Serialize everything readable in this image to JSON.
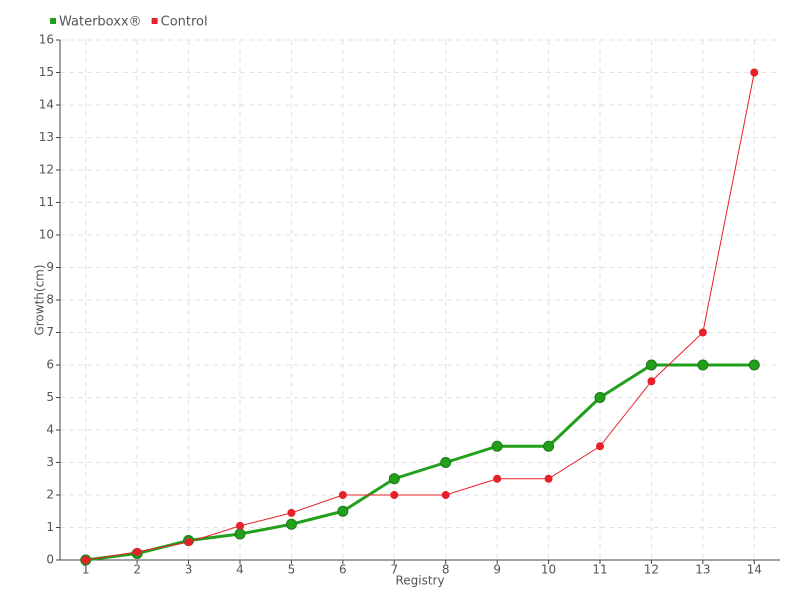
{
  "chart_data": {
    "type": "line",
    "x_label": "Registry",
    "y_label": "Growth(cm)",
    "categories": [
      "1",
      "2",
      "3",
      "4",
      "5",
      "6",
      "7",
      "8",
      "9",
      "10",
      "11",
      "12",
      "13",
      "14"
    ],
    "series": [
      {
        "name": "Waterboxx®",
        "color": "#22a01c",
        "values": [
          0,
          0.2,
          0.6,
          0.8,
          1.1,
          1.5,
          2.5,
          3,
          3.5,
          3.5,
          5,
          6,
          6,
          6
        ]
      },
      {
        "name": "Control",
        "color": "#e8202a",
        "values": [
          0,
          0.25,
          0.55,
          1.05,
          1.45,
          2,
          2,
          2,
          2.5,
          2.5,
          3.5,
          5.5,
          7,
          15
        ]
      }
    ],
    "ylim": [
      0,
      16
    ],
    "yticks": [
      0,
      1,
      2,
      3,
      4,
      5,
      6,
      7,
      8,
      9,
      10,
      11,
      12,
      13,
      14,
      15,
      16
    ],
    "grid": true,
    "legend": "top-left"
  }
}
